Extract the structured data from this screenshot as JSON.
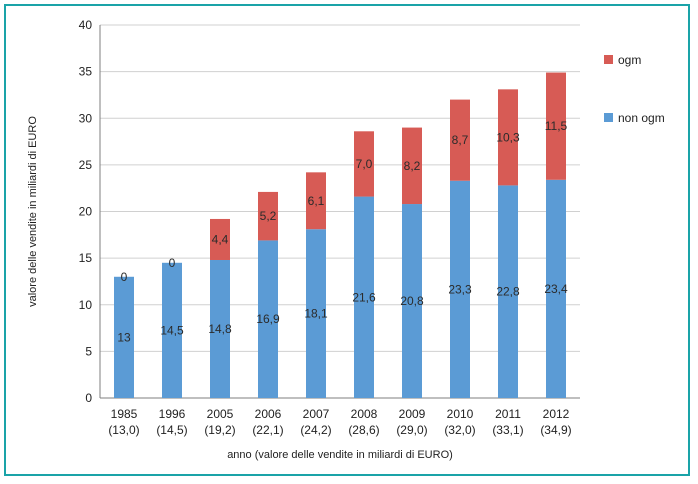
{
  "colors": {
    "frame": "#1aa3a8",
    "non_ogm": "#5b9bd5",
    "ogm": "#d75b55",
    "grid": "#d0d0d0",
    "axis": "#7f7f7f"
  },
  "chart_data": {
    "type": "bar",
    "stacked": true,
    "categories": [
      "1985",
      "1996",
      "2005",
      "2006",
      "2007",
      "2008",
      "2009",
      "2010",
      "2011",
      "2012"
    ],
    "category_sublabels": [
      "(13,0)",
      "(14,5)",
      "(19,2)",
      "(22,1)",
      "(24,2)",
      "(28,6)",
      "(29,0)",
      "(32,0)",
      "(33,1)",
      "(34,9)"
    ],
    "series": [
      {
        "name": "non ogm",
        "color": "#5b9bd5",
        "values": [
          13,
          14.5,
          14.8,
          16.9,
          18.1,
          21.6,
          20.8,
          23.3,
          22.8,
          23.4
        ],
        "labels": [
          "13",
          "14,5",
          "14,8",
          "16,9",
          "18,1",
          "21,6",
          "20,8",
          "23,3",
          "22,8",
          "23,4"
        ]
      },
      {
        "name": "ogm",
        "color": "#d75b55",
        "values": [
          0,
          0,
          4.4,
          5.2,
          6.1,
          7.0,
          8.2,
          8.7,
          10.3,
          11.5
        ],
        "labels": [
          "0",
          "0",
          "4,4",
          "5,2",
          "6,1",
          "7,0",
          "8,2",
          "8,7",
          "10,3",
          "11,5"
        ]
      }
    ],
    "ylim": [
      0,
      40
    ],
    "yticks": [
      "0",
      "5",
      "10",
      "15",
      "20",
      "25",
      "30",
      "35",
      "40"
    ],
    "ylabel": "valore delle vendite in miliardi di EURO",
    "xlabel": "anno (valore delle vendite in miliardi di EURO)",
    "grid": true,
    "legend": {
      "position": "right",
      "entries": [
        "ogm",
        "non ogm"
      ]
    }
  }
}
